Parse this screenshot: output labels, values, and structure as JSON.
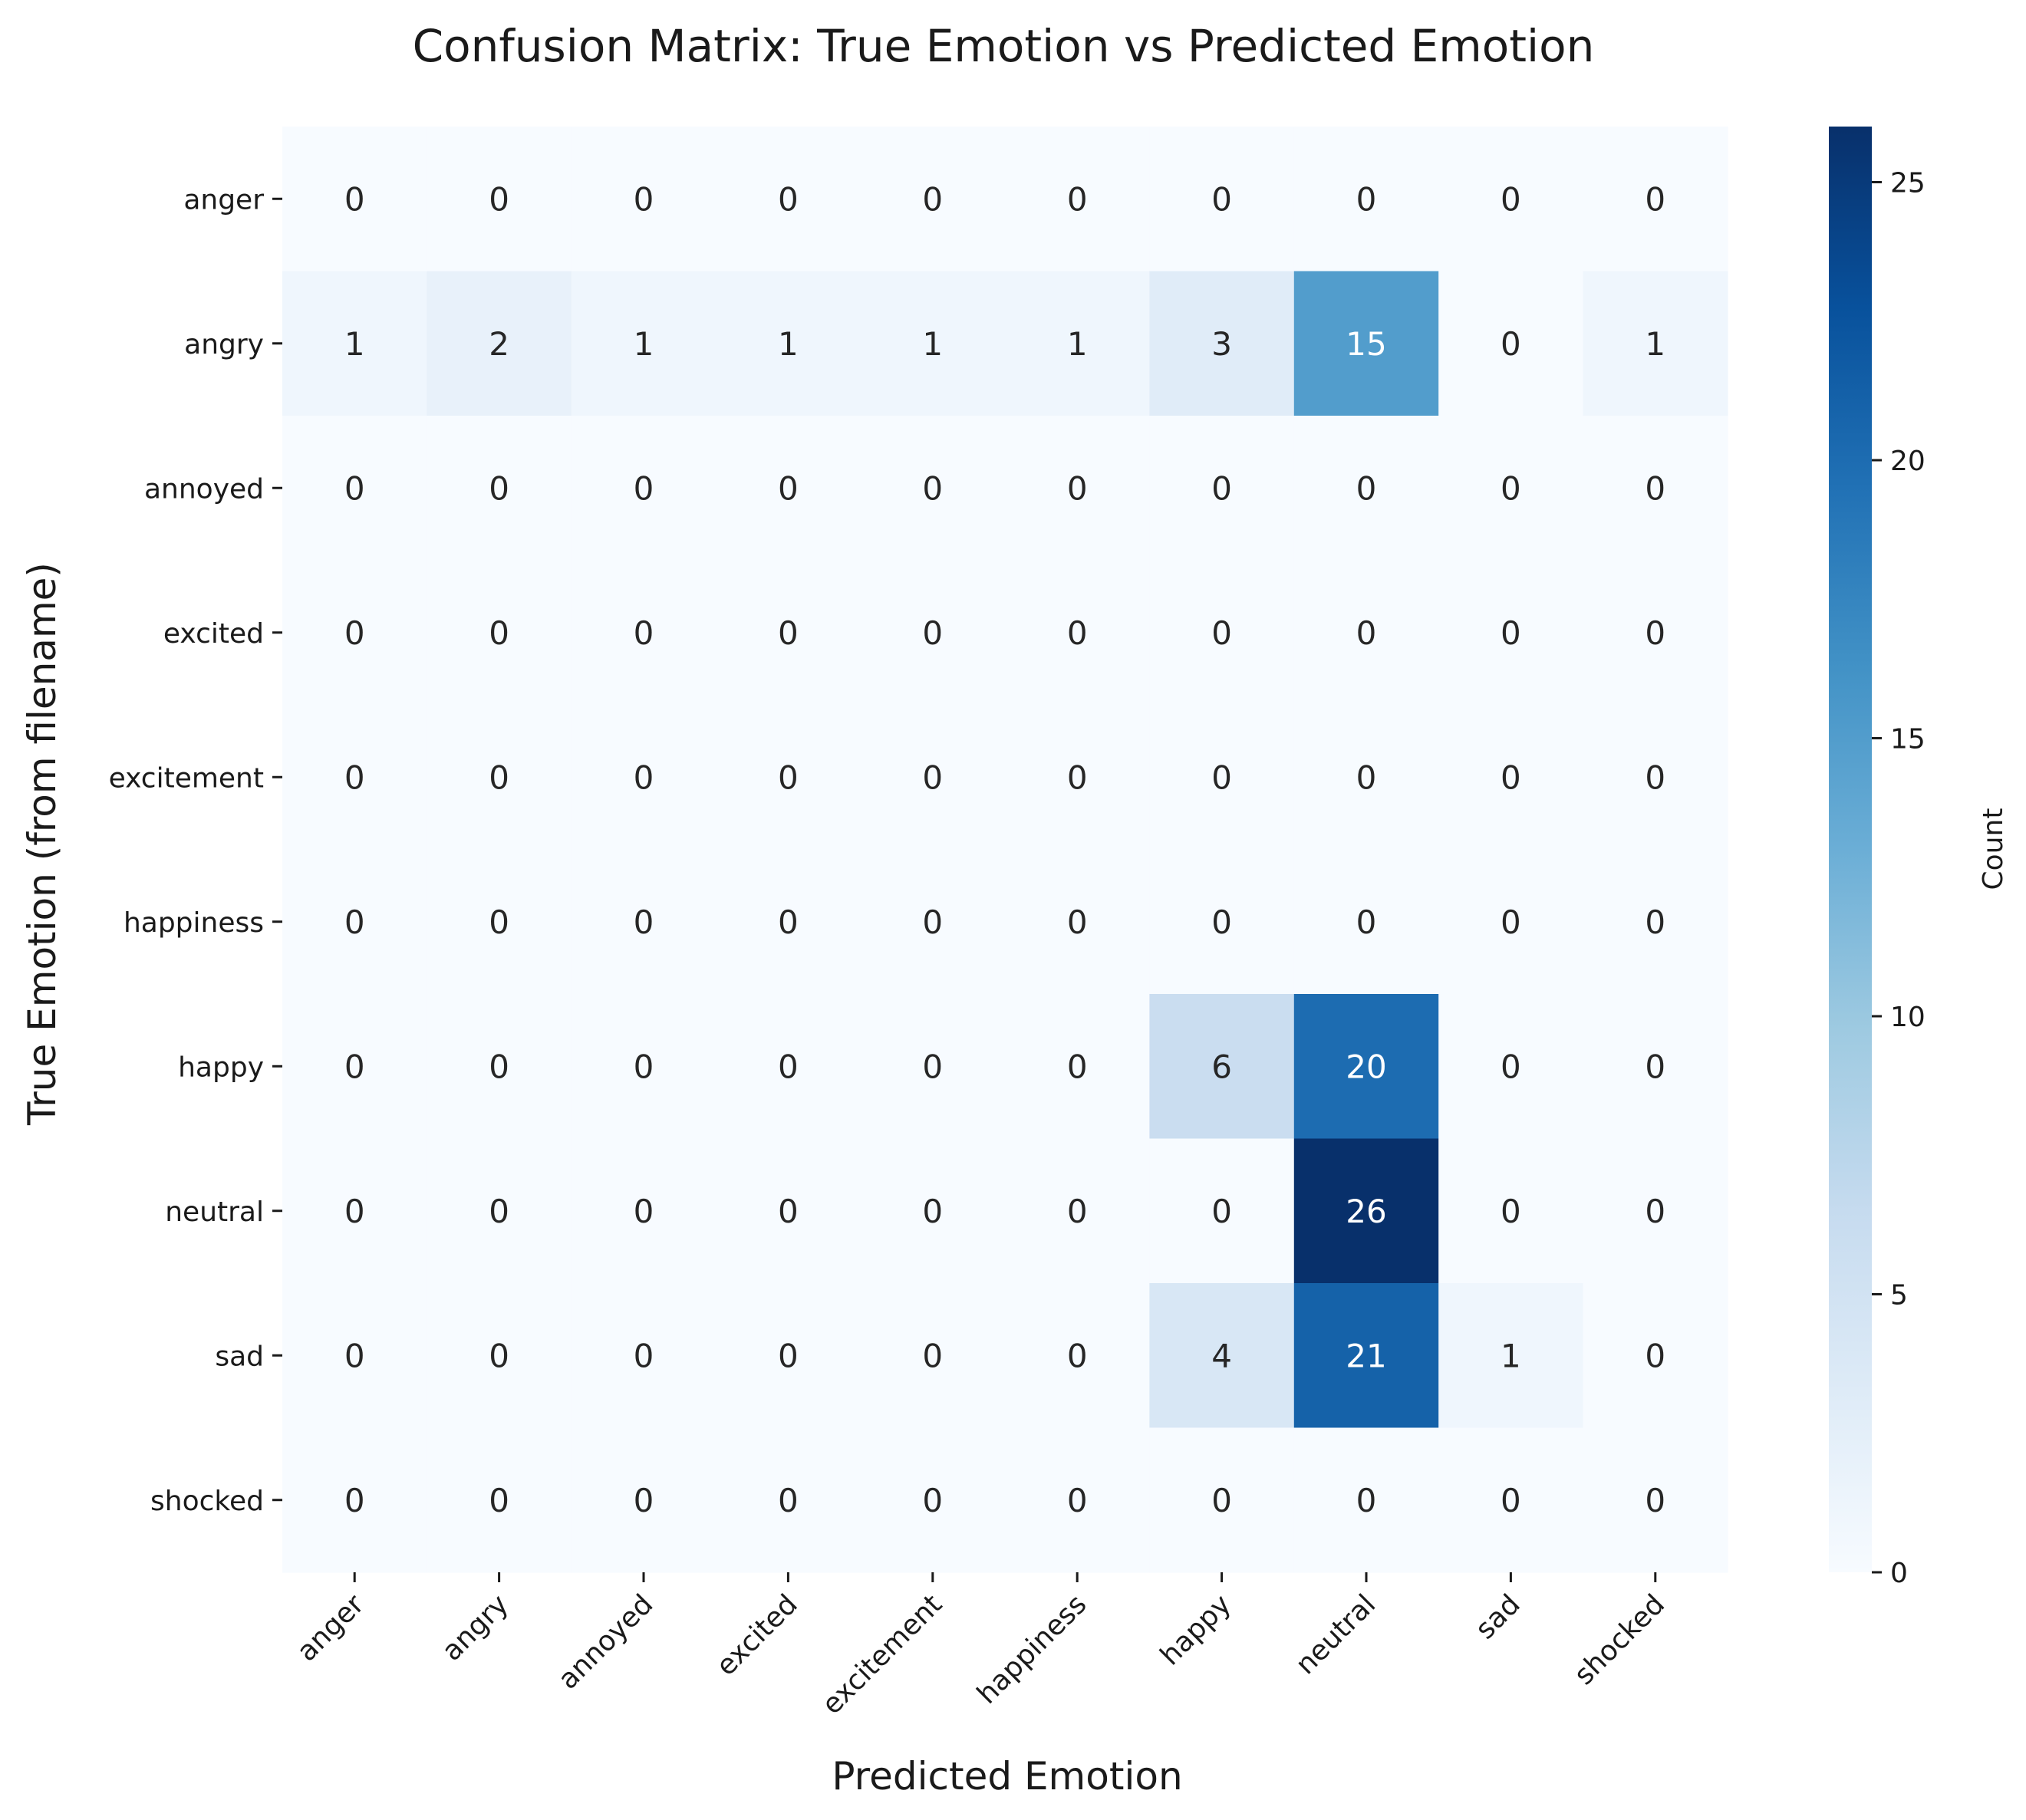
{
  "chart_data": {
    "type": "heatmap",
    "title": "Confusion Matrix: True Emotion vs Predicted Emotion",
    "xlabel": "Predicted Emotion",
    "ylabel": "True Emotion (from filename)",
    "x_categories": [
      "anger",
      "angry",
      "annoyed",
      "excited",
      "excitement",
      "happiness",
      "happy",
      "neutral",
      "sad",
      "shocked"
    ],
    "y_categories": [
      "anger",
      "angry",
      "annoyed",
      "excited",
      "excitement",
      "happiness",
      "happy",
      "neutral",
      "sad",
      "shocked"
    ],
    "values": [
      [
        0,
        0,
        0,
        0,
        0,
        0,
        0,
        0,
        0,
        0
      ],
      [
        1,
        2,
        1,
        1,
        1,
        1,
        3,
        15,
        0,
        1
      ],
      [
        0,
        0,
        0,
        0,
        0,
        0,
        0,
        0,
        0,
        0
      ],
      [
        0,
        0,
        0,
        0,
        0,
        0,
        0,
        0,
        0,
        0
      ],
      [
        0,
        0,
        0,
        0,
        0,
        0,
        0,
        0,
        0,
        0
      ],
      [
        0,
        0,
        0,
        0,
        0,
        0,
        0,
        0,
        0,
        0
      ],
      [
        0,
        0,
        0,
        0,
        0,
        0,
        6,
        20,
        0,
        0
      ],
      [
        0,
        0,
        0,
        0,
        0,
        0,
        0,
        26,
        0,
        0
      ],
      [
        0,
        0,
        0,
        0,
        0,
        0,
        4,
        21,
        1,
        0
      ],
      [
        0,
        0,
        0,
        0,
        0,
        0,
        0,
        0,
        0,
        0
      ]
    ],
    "colorbar": {
      "label": "Count",
      "range": [
        0,
        26
      ],
      "ticks": [
        0,
        5,
        10,
        15,
        20,
        25
      ],
      "colormap": "Blues",
      "colors": [
        "#f7fbff",
        "#deebf7",
        "#c6dbef",
        "#9ecae1",
        "#6baed6",
        "#4292c6",
        "#2171b5",
        "#08519c",
        "#08306b"
      ]
    },
    "grid": false,
    "legend": "colorbar-right"
  }
}
